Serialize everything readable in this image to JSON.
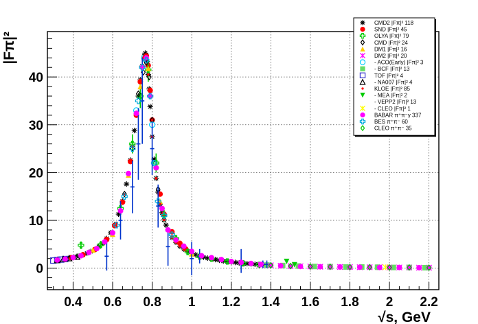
{
  "chart_data": {
    "type": "scatter",
    "title": "",
    "xlabel": "√s, GeV",
    "ylabel": "|Fπ|²",
    "xlim": [
      0.27,
      2.25
    ],
    "ylim": [
      -4.5,
      49.5
    ],
    "grid": true,
    "legend_position": "top-right",
    "x_ticks": [
      "0.4",
      "0.6",
      "0.8",
      "1",
      "1.2",
      "1.4",
      "1.6",
      "1.8",
      "2",
      "2.2"
    ],
    "y_ticks": [
      "0",
      "10",
      "20",
      "30",
      "40"
    ],
    "peak": {
      "x": 0.775,
      "y": 45
    },
    "series": [
      {
        "name": "CMD2 |Fπ|² 118",
        "marker": "asterisk",
        "color": "#000000",
        "x": [
          0.37,
          0.39,
          0.41,
          0.43,
          0.45,
          0.47,
          0.49,
          0.51,
          0.53,
          0.55,
          0.57,
          0.59,
          0.61,
          0.63,
          0.65,
          0.67,
          0.69,
          0.7,
          0.71,
          0.72,
          0.73,
          0.74,
          0.75,
          0.76,
          0.765,
          0.77,
          0.775,
          0.78,
          0.785,
          0.79,
          0.8,
          0.81,
          0.82,
          0.83,
          0.84,
          0.85,
          0.86,
          0.87,
          0.88,
          0.9,
          0.92,
          0.94,
          0.96,
          0.98,
          1.0,
          1.02,
          1.04,
          1.06,
          1.08,
          1.1,
          1.12,
          1.14,
          1.16,
          1.18,
          1.2,
          1.22,
          1.24,
          1.26,
          1.28,
          1.3,
          1.32,
          1.34,
          1.36,
          1.38
        ],
        "y": [
          2.0,
          2.1,
          2.3,
          2.5,
          2.8,
          3.1,
          3.5,
          3.9,
          4.5,
          5.2,
          6.2,
          7.4,
          9.1,
          11.3,
          14.0,
          17.6,
          22.6,
          25.5,
          28.8,
          32.4,
          36.0,
          39.4,
          42.3,
          44.4,
          45.0,
          44.6,
          43.2,
          40.5,
          37.5,
          33.8,
          27.5,
          22.8,
          18.8,
          15.9,
          13.4,
          11.6,
          10.1,
          9.0,
          8.0,
          6.4,
          5.4,
          4.6,
          4.0,
          3.5,
          3.1,
          2.8,
          2.5,
          2.3,
          2.1,
          1.95,
          1.8,
          1.65,
          1.5,
          1.4,
          1.3,
          1.2,
          1.1,
          1.0,
          0.95,
          0.9,
          0.82,
          0.75,
          0.7,
          0.65
        ]
      },
      {
        "name": "SND |Fπ|² 45",
        "marker": "circle",
        "color": "#ff0000",
        "x": [
          0.39,
          0.45,
          0.51,
          0.57,
          0.61,
          0.65,
          0.69,
          0.72,
          0.74,
          0.76,
          0.77,
          0.78,
          0.79,
          0.8,
          0.82,
          0.84,
          0.86,
          0.9,
          0.94,
          0.97
        ],
        "y": [
          2.2,
          2.8,
          3.9,
          6.0,
          8.9,
          13.8,
          22.3,
          32.0,
          39.0,
          43.8,
          44.4,
          42.4,
          37.2,
          31.0,
          21.0,
          15.5,
          11.3,
          7.6,
          5.2,
          4.0
        ]
      },
      {
        "name": "OLYA |Fπ|² 79",
        "marker": "cross-open",
        "color": "#00cc00",
        "x": [
          0.44,
          0.54,
          0.64,
          0.7,
          0.74,
          0.78,
          0.82,
          0.86,
          0.92,
          0.98,
          1.04,
          1.1,
          1.18,
          1.26,
          1.34
        ],
        "y": [
          4.8,
          4.9,
          12.5,
          26.0,
          36.0,
          41.5,
          22.0,
          11.0,
          6.2,
          3.4,
          2.4,
          2.0,
          1.4,
          1.0,
          0.7
        ],
        "err": [
          0.8,
          0.8,
          1.2,
          2.0,
          2.5,
          2.5,
          2.0,
          1.2,
          0.8,
          0.6,
          0.5,
          0.5,
          0.4,
          0.4,
          0.3
        ]
      },
      {
        "name": "CMD |Fπ|² 24",
        "marker": "diamond-open",
        "color": "#000000",
        "x": [
          0.66,
          0.7,
          0.73,
          0.755,
          0.77,
          0.785,
          0.8,
          0.83
        ],
        "y": [
          15.5,
          25.0,
          36.5,
          41.0,
          43.0,
          40.0,
          31.0,
          16.5
        ]
      },
      {
        "name": "DM1 |Fπ|² 16",
        "marker": "triangle",
        "color": "#ffcc00",
        "x": [
          0.5,
          0.6,
          0.68,
          0.74,
          0.78,
          0.84,
          0.92,
          1.0
        ],
        "y": [
          3.8,
          7.1,
          19.5,
          38.0,
          41.8,
          14.0,
          6.0,
          3.0
        ]
      },
      {
        "name": "DM2 |Fπ|² 20",
        "marker": "star",
        "color": "#ff00ff",
        "x": [
          1.35,
          1.4,
          1.45,
          1.5,
          1.55,
          1.6,
          1.65,
          1.7,
          1.75,
          1.8,
          1.85,
          1.9,
          1.95,
          2.0,
          2.05,
          2.1,
          2.15,
          2.2
        ],
        "y": [
          0.7,
          0.6,
          0.5,
          0.45,
          0.4,
          0.35,
          0.3,
          0.3,
          0.25,
          0.25,
          0.2,
          0.2,
          0.2,
          0.15,
          0.15,
          0.15,
          0.1,
          0.1
        ]
      },
      {
        "name": "- ACO(Early) |Fπ|² 3",
        "marker": "circle-open",
        "color": "#00ccff",
        "x": [
          0.72,
          0.76,
          0.8
        ],
        "y": [
          33.0,
          44.0,
          30.0
        ]
      },
      {
        "name": "- BCF |Fπ|² 13",
        "marker": "square",
        "color": "#66dd66",
        "x": [
          1.38,
          1.46,
          1.54,
          1.62,
          1.7,
          1.78,
          1.86,
          1.94,
          2.02,
          2.1,
          2.18
        ],
        "y": [
          0.65,
          0.55,
          0.45,
          0.35,
          0.3,
          0.25,
          0.25,
          0.2,
          0.15,
          0.15,
          0.1
        ]
      },
      {
        "name": "TOF |Fπ|² 4",
        "marker": "square-open",
        "color": "#3333cc",
        "x": [
          0.3,
          0.32,
          0.34,
          0.36
        ],
        "y": [
          1.6,
          1.7,
          1.8,
          1.9
        ]
      },
      {
        "name": "- NA007 |Fπ|² 4",
        "marker": "triangle-open",
        "color": "#000000",
        "x": [
          0.32,
          0.35,
          0.38,
          0.42
        ],
        "y": [
          1.7,
          1.9,
          2.1,
          2.4
        ]
      },
      {
        "name": "KLOE |Fπ|² 85",
        "marker": "dot",
        "color": "#ff0000",
        "x": [
          0.6,
          0.62,
          0.64,
          0.66,
          0.68,
          0.7,
          0.72,
          0.74,
          0.76,
          0.78,
          0.8,
          0.82,
          0.84,
          0.86,
          0.88,
          0.9,
          0.92,
          0.94,
          0.96
        ],
        "y": [
          7.4,
          9.5,
          12.0,
          15.5,
          19.8,
          25.5,
          32.4,
          39.4,
          44.4,
          40.5,
          27.5,
          18.8,
          13.4,
          10.1,
          8.0,
          6.4,
          5.4,
          4.6,
          4.0
        ]
      },
      {
        "name": "- MEA |Fπ|² 2",
        "marker": "triangle-down",
        "color": "#00cc00",
        "x": [
          1.48,
          1.52
        ],
        "y": [
          1.4,
          0.7
        ]
      },
      {
        "name": "- VEPP2 |Fπ|² 13",
        "marker": "none",
        "color": "#000000",
        "x": [
          0.57,
          0.64,
          0.7,
          0.73,
          0.75,
          0.8,
          0.83,
          0.88,
          1.0,
          1.04,
          1.25,
          1.36,
          1.38
        ],
        "y": [
          2.5,
          10.0,
          17.0,
          26.0,
          35.0,
          25.0,
          13.0,
          4.5,
          2.0,
          2.5,
          1.5,
          0.8,
          0.8
        ],
        "err": [
          3.0,
          4.0,
          5.5,
          7.5,
          9.0,
          5.5,
          4.5,
          4.0,
          3.5,
          1.5,
          2.5,
          0.8,
          0.8
        ]
      },
      {
        "name": "- CLEO |Fπ|² 1",
        "marker": "star",
        "color": "#ffff00",
        "x": [
          1.98
        ],
        "y": [
          0.2
        ]
      },
      {
        "name": "BABAR π⁺π⁻γ 337",
        "marker": "circle",
        "color": "#ff00ff",
        "x": [
          0.32,
          0.36,
          0.4,
          0.44,
          0.48,
          0.52,
          0.56,
          0.6,
          0.64,
          0.68,
          0.72,
          0.75,
          0.77,
          0.79,
          0.82,
          0.85,
          0.88,
          0.92,
          0.96,
          1.0,
          1.05,
          1.1,
          1.15,
          1.2,
          1.25,
          1.3,
          1.35,
          1.4,
          1.45,
          1.5,
          1.55,
          1.6,
          1.65,
          1.7,
          1.75,
          1.8,
          1.85,
          1.9,
          1.95,
          2.0,
          2.05,
          2.1,
          2.15,
          2.2
        ],
        "y": [
          1.7,
          1.9,
          2.2,
          2.6,
          3.3,
          4.1,
          5.5,
          7.4,
          12.0,
          19.8,
          32.4,
          42.0,
          44.0,
          36.0,
          21.0,
          12.5,
          8.0,
          5.9,
          4.6,
          3.5,
          2.6,
          2.2,
          1.8,
          1.4,
          1.2,
          1.0,
          0.8,
          0.6,
          0.5,
          0.4,
          0.35,
          0.3,
          0.3,
          0.25,
          0.25,
          0.2,
          0.2,
          0.2,
          0.15,
          0.15,
          0.15,
          0.1,
          0.1,
          0.1
        ]
      },
      {
        "name": "BES π⁺π⁻ 60",
        "marker": "cross-open",
        "color": "#00aadd",
        "x": [
          0.62,
          0.66,
          0.7,
          0.73,
          0.75,
          0.77,
          0.79,
          0.81,
          0.83,
          0.86,
          0.9
        ],
        "y": [
          9.0,
          15.0,
          25.0,
          35.0,
          42.0,
          43.5,
          36.0,
          22.0,
          14.0,
          11.0,
          7.0
        ]
      },
      {
        "name": "CLEO π⁺π⁻ 35",
        "marker": "diamond-open",
        "color": "#00cc00",
        "x": [
          1.4,
          1.5,
          1.6,
          1.7,
          1.8,
          1.9,
          2.0,
          2.1,
          2.2
        ],
        "y": [
          0.6,
          0.45,
          0.35,
          0.3,
          0.25,
          0.2,
          0.15,
          0.15,
          0.1
        ]
      }
    ]
  }
}
